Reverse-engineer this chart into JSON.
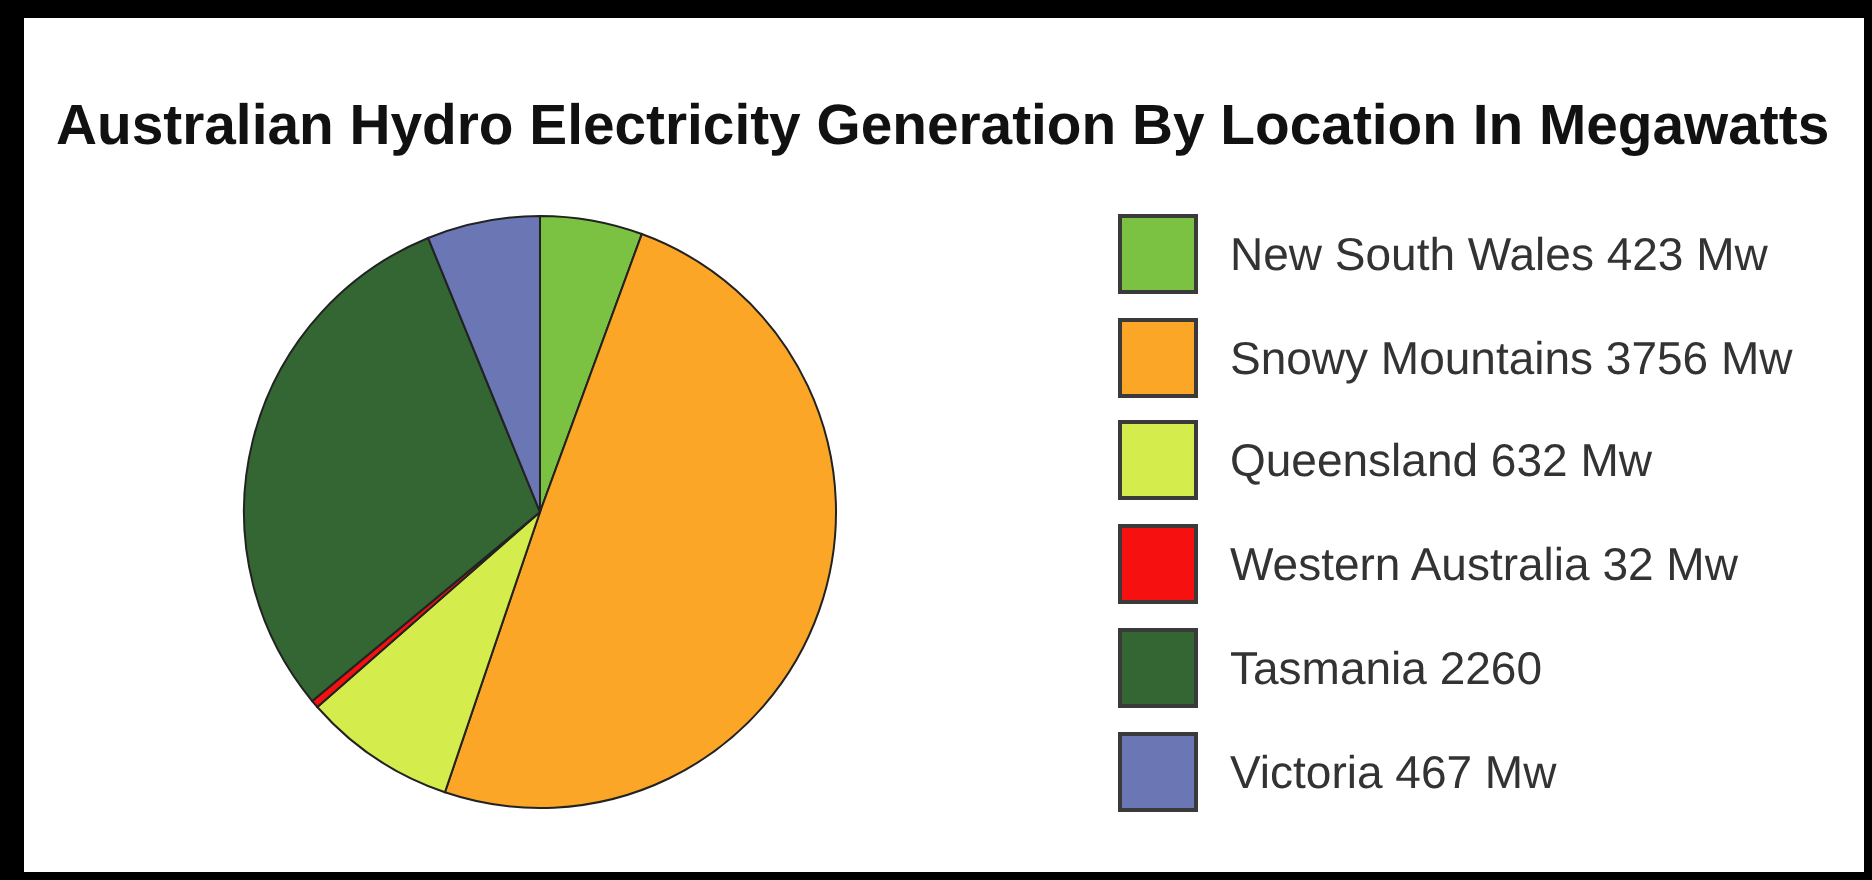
{
  "chart_data": {
    "type": "pie",
    "title": "Australian Hydro Electricity Generation By Location In Megawatts",
    "categories": [
      "New South Wales 423 Mw",
      "Snowy Mountains 3756 Mw",
      "Queensland 632 Mw",
      "Western Australia 32 Mw",
      "Tasmania 2260",
      "Victoria 467 Mw"
    ],
    "values": [
      423,
      3756,
      632,
      32,
      2260,
      467
    ],
    "colors": [
      "#7bc142",
      "#fca628",
      "#d4ec4c",
      "#f71010",
      "#336633",
      "#6b77b5"
    ],
    "legend": "right"
  }
}
